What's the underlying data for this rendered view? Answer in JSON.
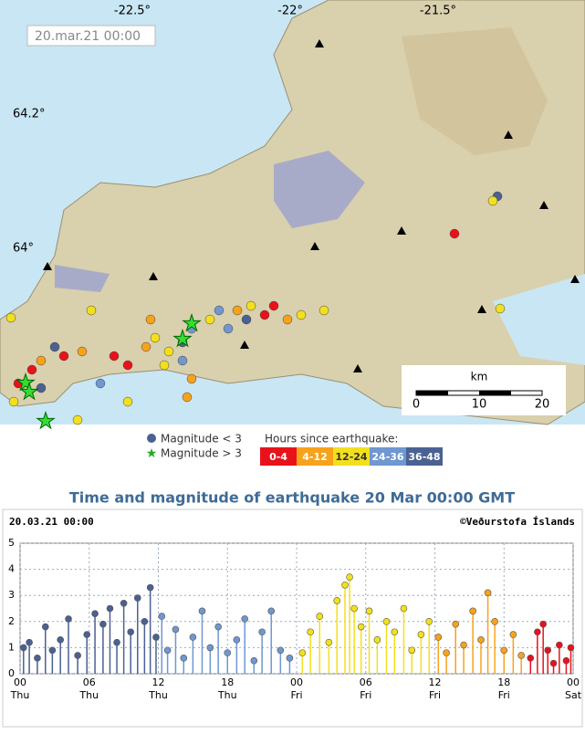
{
  "map": {
    "timestamp": "20.mar.21  00:00",
    "lon_labels": [
      "-22.5°",
      "-22°",
      "-21.5°"
    ],
    "lat_labels": [
      "64.2°",
      "64°"
    ],
    "scale": {
      "unit": "km",
      "labels": [
        "0",
        "10",
        "20"
      ]
    }
  },
  "legend": {
    "small": "Magnitude < 3",
    "large": "Magnitude > 3",
    "hours_title": "Hours since earthquake:"
  },
  "chart_data": {
    "type": "stem",
    "title": "Time and magnitude of earthquake   20 Mar 00:00 GMT",
    "header_left": "20.03.21 00:00",
    "header_right": "©Veðurstofa Íslands",
    "xlim": [
      0,
      48
    ],
    "xticks": [
      {
        "value": 0,
        "label": "00"
      },
      {
        "value": 6,
        "label": "06"
      },
      {
        "value": 12,
        "label": "12"
      },
      {
        "value": 18,
        "label": "18"
      },
      {
        "value": 24,
        "label": "00"
      },
      {
        "value": 30,
        "label": "06"
      },
      {
        "value": 36,
        "label": "12"
      },
      {
        "value": 42,
        "label": "18"
      },
      {
        "value": 48,
        "label": "00"
      }
    ],
    "xtick_days": [
      "Thu",
      "Thu",
      "Thu",
      "Thu",
      "Fri",
      "Fri",
      "Fri",
      "Fri",
      "Sat"
    ],
    "ylim": [
      0,
      5
    ],
    "yticks": [
      0,
      1,
      2,
      3,
      4,
      5
    ],
    "grid": true,
    "series": [
      {
        "name": "36-48",
        "color": "#4a6192",
        "x": [
          0.3,
          0.8,
          1.5,
          2.2,
          2.8,
          3.5,
          4.2,
          5.0,
          5.8,
          6.5,
          7.2,
          7.8,
          8.4,
          9.0,
          9.6,
          10.2,
          10.8,
          11.3,
          11.8
        ],
        "values": [
          1.0,
          1.2,
          0.6,
          1.8,
          0.9,
          1.3,
          2.1,
          0.7,
          1.5,
          2.3,
          1.9,
          2.5,
          1.2,
          2.7,
          1.6,
          2.9,
          2.0,
          3.3,
          1.4
        ]
      },
      {
        "name": "24-36",
        "color": "#6f97d0",
        "x": [
          12.3,
          12.8,
          13.5,
          14.2,
          15.0,
          15.8,
          16.5,
          17.2,
          18.0,
          18.8,
          19.5,
          20.3,
          21.0,
          21.8,
          22.6,
          23.4
        ],
        "values": [
          2.2,
          0.9,
          1.7,
          0.6,
          1.4,
          2.4,
          1.0,
          1.8,
          0.8,
          1.3,
          2.1,
          0.5,
          1.6,
          2.4,
          0.9,
          0.6
        ]
      },
      {
        "name": "12-24",
        "color": "#f2e01c",
        "x": [
          24.5,
          25.2,
          26.0,
          26.8,
          27.5,
          28.2,
          28.6,
          29.0,
          29.6,
          30.3,
          31.0,
          31.8,
          32.5,
          33.3,
          34.0,
          34.8,
          35.5
        ],
        "values": [
          0.8,
          1.6,
          2.2,
          1.2,
          2.8,
          3.4,
          3.7,
          2.5,
          1.8,
          2.4,
          1.3,
          2.0,
          1.6,
          2.5,
          0.9,
          1.5,
          2.0
        ]
      },
      {
        "name": "4-12",
        "color": "#f7a21b",
        "x": [
          36.3,
          37.0,
          37.8,
          38.5,
          39.3,
          40.0,
          40.6,
          41.2,
          42.0,
          42.8,
          43.5
        ],
        "values": [
          1.4,
          0.8,
          1.9,
          1.1,
          2.4,
          1.3,
          3.1,
          2.0,
          0.9,
          1.5,
          0.7
        ]
      },
      {
        "name": "0-4",
        "color": "#e8121b",
        "x": [
          44.3,
          44.9,
          45.4,
          45.8,
          46.3,
          46.8,
          47.4,
          47.8
        ],
        "values": [
          0.6,
          1.6,
          1.9,
          0.9,
          0.4,
          1.1,
          0.5,
          1.0
        ]
      }
    ]
  }
}
